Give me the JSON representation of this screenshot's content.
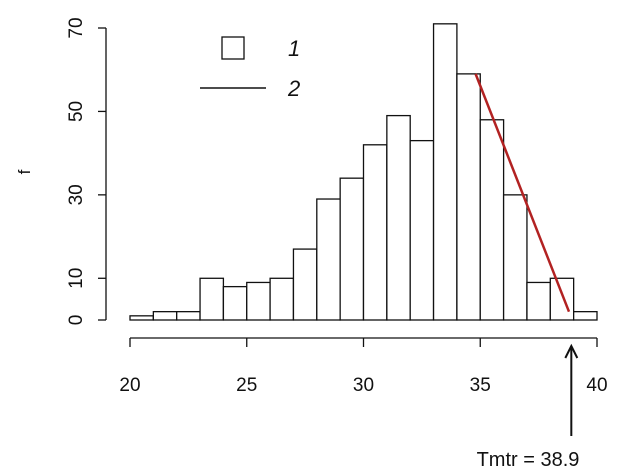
{
  "chart_data": {
    "type": "bar",
    "subtype": "histogram",
    "title": "",
    "xlabel": "",
    "ylabel": "f",
    "bin_width": 1,
    "bin_starts": [
      20,
      21,
      22,
      23,
      24,
      25,
      26,
      27,
      28,
      29,
      30,
      31,
      32,
      33,
      34,
      35,
      36,
      37,
      38,
      39
    ],
    "values": [
      1,
      2,
      2,
      10,
      8,
      9,
      10,
      17,
      29,
      34,
      42,
      49,
      43,
      71,
      59,
      48,
      30,
      9,
      10,
      2
    ],
    "xlim": [
      20,
      40
    ],
    "ylim": [
      0,
      70
    ],
    "x_ticks": [
      20,
      25,
      30,
      35,
      40
    ],
    "y_ticks": [
      0,
      10,
      30,
      50,
      70
    ],
    "fit_line": {
      "color": "#b22222",
      "x": [
        34.8,
        38.8
      ],
      "y": [
        59,
        2
      ]
    },
    "legend": {
      "position": "top-left",
      "items": [
        {
          "symbol": "box",
          "label": "1"
        },
        {
          "symbol": "line",
          "label": "2"
        }
      ]
    },
    "annotation": {
      "label": "Tmtr = 38.9",
      "x": 38.9
    },
    "grid": false
  }
}
